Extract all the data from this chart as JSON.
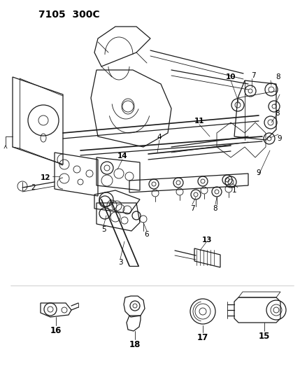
{
  "title": "7105  300C",
  "bg_color": "#f5f5f0",
  "line_color": "#1a1a1a",
  "title_fontsize": 11,
  "label_fontsize": 7.5,
  "fig_width": 4.29,
  "fig_height": 5.33,
  "dpi": 100
}
